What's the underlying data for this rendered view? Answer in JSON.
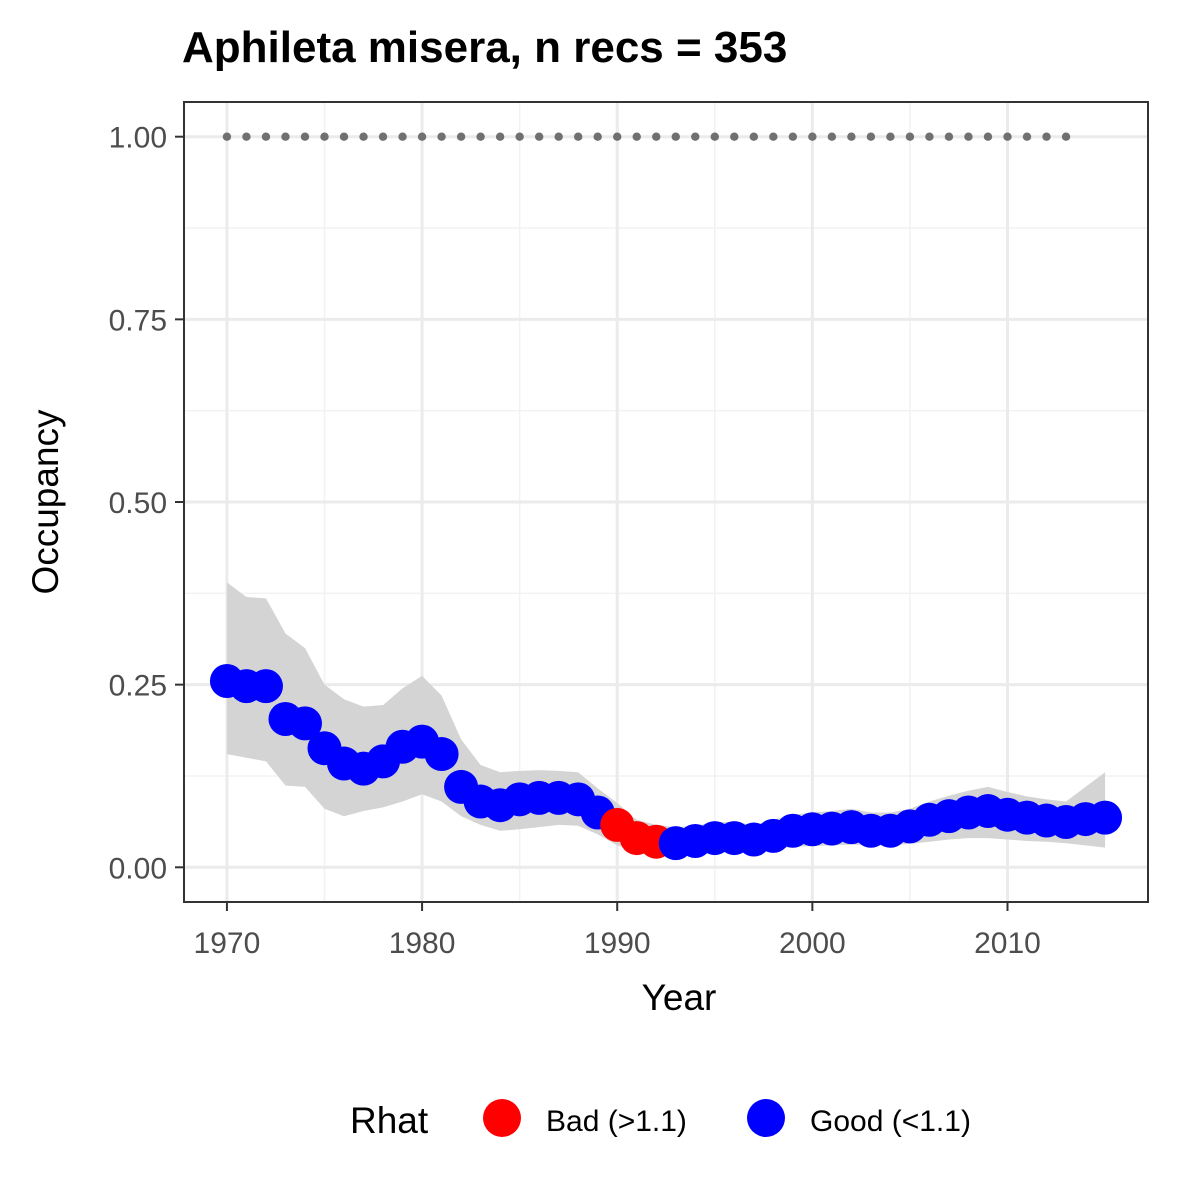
{
  "chart_data": {
    "type": "line",
    "title": "Aphileta misera, n recs = 353",
    "xlabel": "Year",
    "ylabel": "Occupancy",
    "xlim": [
      1967.8,
      2017.2
    ],
    "ylim": [
      -0.0475,
      1.0475
    ],
    "x_ticks": [
      1970,
      1980,
      1990,
      2000,
      2010
    ],
    "x_tick_labels": [
      "1970",
      "1980",
      "1990",
      "2000",
      "2010"
    ],
    "y_ticks": [
      0,
      0.25,
      0.5,
      0.75,
      1.0
    ],
    "y_tick_labels": [
      "0.00",
      "0.25",
      "0.50",
      "0.75",
      "1.00"
    ],
    "grid": true,
    "legend": {
      "position": "bottom",
      "title": "Rhat",
      "entries": [
        {
          "label": "Bad (>1.1)",
          "color": "#ff0000"
        },
        {
          "label": "Good (<1.1)",
          "color": "#0000ff"
        }
      ]
    },
    "colors": {
      "bad": "#ff0000",
      "good": "#0000ff",
      "ribbon": "#d4d4d4",
      "reference": "#707070"
    },
    "reference_points": {
      "y": 1.0,
      "x": [
        1970,
        1971,
        1972,
        1973,
        1974,
        1975,
        1976,
        1977,
        1978,
        1979,
        1980,
        1981,
        1982,
        1983,
        1984,
        1985,
        1986,
        1987,
        1988,
        1989,
        1990,
        1991,
        1992,
        1993,
        1994,
        1995,
        1996,
        1997,
        1998,
        1999,
        2000,
        2001,
        2002,
        2003,
        2004,
        2005,
        2006,
        2007,
        2008,
        2009,
        2010,
        2011,
        2012,
        2013
      ]
    },
    "x": [
      1970,
      1971,
      1972,
      1973,
      1974,
      1975,
      1976,
      1977,
      1978,
      1979,
      1980,
      1981,
      1982,
      1983,
      1984,
      1985,
      1986,
      1987,
      1988,
      1989,
      1990,
      1991,
      1992,
      1993,
      1994,
      1995,
      1996,
      1997,
      1998,
      1999,
      2000,
      2001,
      2002,
      2003,
      2004,
      2005,
      2006,
      2007,
      2008,
      2009,
      2010,
      2011,
      2012,
      2013,
      2014,
      2015
    ],
    "occupancy": [
      0.255,
      0.248,
      0.248,
      0.203,
      0.197,
      0.163,
      0.142,
      0.135,
      0.145,
      0.165,
      0.172,
      0.155,
      0.11,
      0.09,
      0.085,
      0.093,
      0.095,
      0.095,
      0.093,
      0.075,
      0.058,
      0.04,
      0.035,
      0.033,
      0.036,
      0.04,
      0.04,
      0.038,
      0.043,
      0.05,
      0.052,
      0.053,
      0.055,
      0.05,
      0.05,
      0.056,
      0.065,
      0.07,
      0.075,
      0.077,
      0.072,
      0.068,
      0.064,
      0.062,
      0.066,
      0.068
    ],
    "lower": [
      0.155,
      0.15,
      0.145,
      0.112,
      0.11,
      0.08,
      0.07,
      0.077,
      0.082,
      0.09,
      0.1,
      0.09,
      0.07,
      0.058,
      0.05,
      0.052,
      0.055,
      0.058,
      0.057,
      0.045,
      0.03,
      0.022,
      0.02,
      0.018,
      0.02,
      0.022,
      0.022,
      0.02,
      0.024,
      0.028,
      0.029,
      0.03,
      0.031,
      0.03,
      0.03,
      0.032,
      0.035,
      0.038,
      0.04,
      0.04,
      0.038,
      0.036,
      0.035,
      0.033,
      0.03,
      0.027
    ],
    "upper": [
      0.39,
      0.37,
      0.368,
      0.32,
      0.3,
      0.25,
      0.23,
      0.22,
      0.222,
      0.245,
      0.262,
      0.235,
      0.175,
      0.14,
      0.13,
      0.132,
      0.133,
      0.132,
      0.13,
      0.108,
      0.088,
      0.065,
      0.058,
      0.055,
      0.057,
      0.062,
      0.062,
      0.058,
      0.065,
      0.072,
      0.075,
      0.077,
      0.08,
      0.075,
      0.075,
      0.08,
      0.09,
      0.098,
      0.105,
      0.11,
      0.103,
      0.097,
      0.093,
      0.09,
      0.11,
      0.13
    ],
    "rhat_status": [
      "good",
      "good",
      "good",
      "good",
      "good",
      "good",
      "good",
      "good",
      "good",
      "good",
      "good",
      "good",
      "good",
      "good",
      "good",
      "good",
      "good",
      "good",
      "good",
      "good",
      "bad",
      "bad",
      "bad",
      "good",
      "good",
      "good",
      "good",
      "good",
      "good",
      "good",
      "good",
      "good",
      "good",
      "good",
      "good",
      "good",
      "good",
      "good",
      "good",
      "good",
      "good",
      "good",
      "good",
      "good",
      "good",
      "good"
    ]
  }
}
